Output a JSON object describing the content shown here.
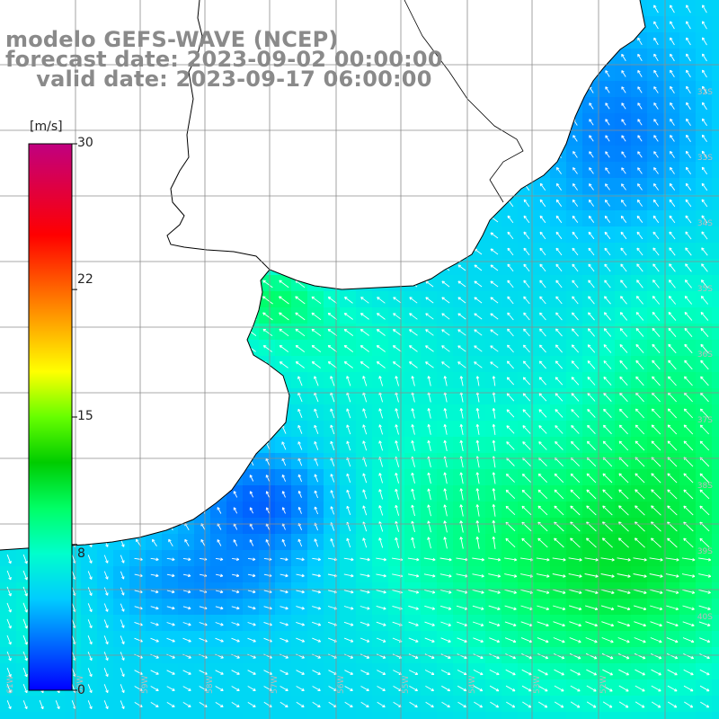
{
  "titles": {
    "model": "modelo GEFS-WAVE (NCEP)",
    "forecast": "forecast date: 2023-09-02 00:00:00",
    "valid": "valid date: 2023-09-17 06:00:00"
  },
  "colorbar": {
    "unit": "[m/s]",
    "ticks": [
      "30",
      "22",
      "15",
      "8",
      "0"
    ],
    "tick_values": [
      30,
      22,
      15,
      8,
      0
    ],
    "range": [
      0,
      30
    ],
    "colors": [
      "#0000ff",
      "#0066ff",
      "#00ccff",
      "#00ffcc",
      "#00ff66",
      "#00cc00",
      "#66ff00",
      "#ffff00",
      "#ffaa00",
      "#ff5500",
      "#ff0000",
      "#e00040",
      "#c00080"
    ]
  },
  "map": {
    "land_color": "#ffffff",
    "coast_color": "#000000",
    "grid_color": "#8c8c8c",
    "arrow_color": "#ffffff",
    "grid": true,
    "lat_labels": [
      "32S",
      "33S",
      "34S",
      "35S",
      "36S",
      "37S",
      "38S",
      "39S",
      "40S"
    ],
    "lon_labels": [
      "61W",
      "60W",
      "59W",
      "58W",
      "57W",
      "56W",
      "55W",
      "54W",
      "53W",
      "52W"
    ]
  }
}
